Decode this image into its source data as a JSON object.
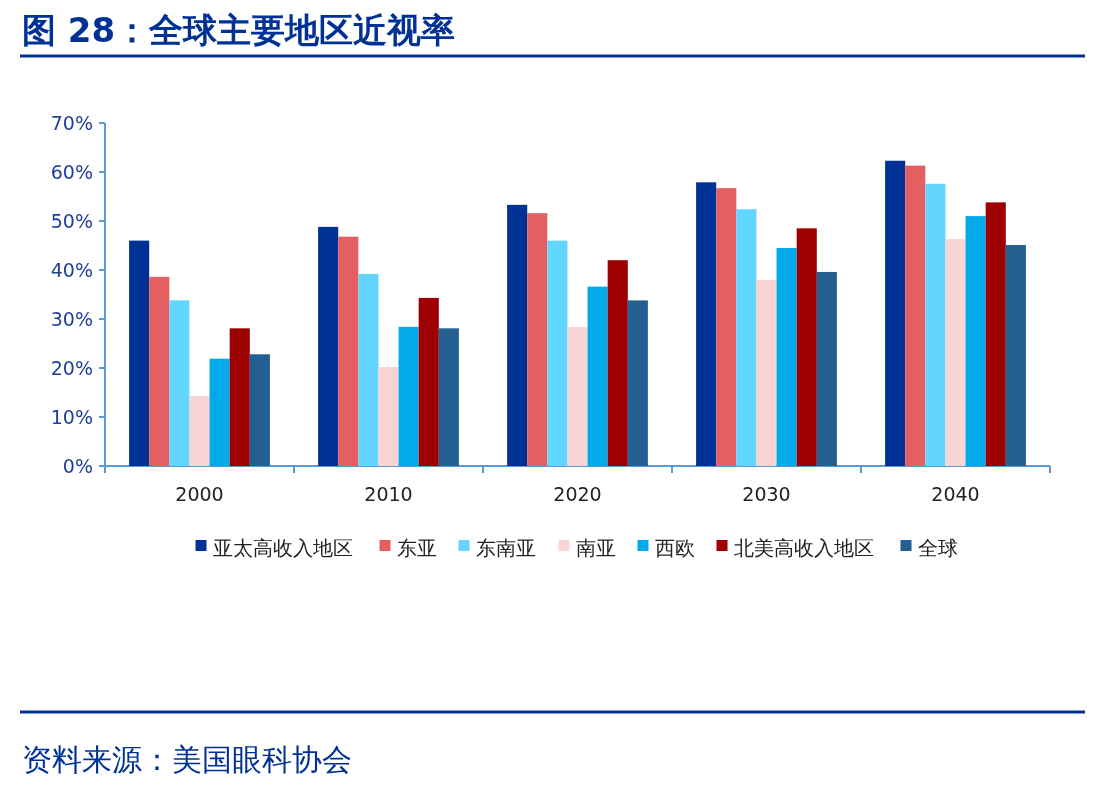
{
  "chart_data": {
    "type": "bar",
    "title": "图 28：全球主要地区近视率",
    "categories": [
      "2000",
      "2010",
      "2020",
      "2030",
      "2040"
    ],
    "series": [
      {
        "name": "亚太高收入地区",
        "color": "#003296",
        "values": [
          46.0,
          48.8,
          53.3,
          57.9,
          62.3
        ]
      },
      {
        "name": "东亚",
        "color": "#e46060",
        "values": [
          38.6,
          46.8,
          51.6,
          56.7,
          61.3
        ]
      },
      {
        "name": "东南亚",
        "color": "#62d6fe",
        "values": [
          33.8,
          39.2,
          46.0,
          52.4,
          57.6
        ]
      },
      {
        "name": "南亚",
        "color": "#f9d4d4",
        "values": [
          14.3,
          20.2,
          28.4,
          38.0,
          46.3
        ]
      },
      {
        "name": "西欧",
        "color": "#03aae9",
        "values": [
          21.9,
          28.4,
          36.6,
          44.5,
          51.0
        ]
      },
      {
        "name": "北美高收入地区",
        "color": "#9c0000",
        "values": [
          28.1,
          34.3,
          42.0,
          48.5,
          53.8
        ]
      },
      {
        "name": "全球",
        "color": "#245f92",
        "values": [
          22.8,
          28.1,
          33.8,
          39.6,
          45.1
        ]
      }
    ],
    "ylim": [
      0,
      70
    ],
    "yticks": [
      {
        "value": 0,
        "label": "0%"
      },
      {
        "value": 10,
        "label": "10%"
      },
      {
        "value": 20,
        "label": "20%"
      },
      {
        "value": 30,
        "label": "30%"
      },
      {
        "value": 40,
        "label": "40%"
      },
      {
        "value": 50,
        "label": "50%"
      },
      {
        "value": 60,
        "label": "60%"
      },
      {
        "value": 70,
        "label": "70%"
      }
    ],
    "legend": "bottom",
    "annotations": [
      "资料来源：美国眼科协会"
    ]
  }
}
